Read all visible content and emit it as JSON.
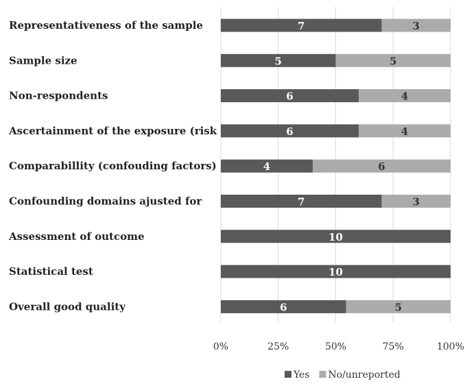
{
  "chart_data": {
    "type": "bar",
    "orientation": "horizontal",
    "stacked": "percent",
    "categories": [
      "Representativeness of the sample",
      "Sample size",
      "Non-respondents",
      "Ascertainment of the exposure (risk factor)",
      "Comparabillity (confouding factors)",
      "Confounding domains ajusted for",
      "Assessment of outcome",
      "Statistical test",
      "Overall good quality"
    ],
    "series": [
      {
        "name": "Yes",
        "values": [
          7,
          5,
          6,
          6,
          4,
          7,
          10,
          10,
          6
        ],
        "color": "#595959"
      },
      {
        "name": "No/unreported",
        "values": [
          3,
          5,
          4,
          4,
          6,
          3,
          0,
          0,
          5
        ],
        "color": "#ababab"
      }
    ],
    "xticks": [
      "0%",
      "25%",
      "50%",
      "75%",
      "100%"
    ],
    "xlim": [
      0,
      100
    ],
    "grid": true,
    "legend": "bottom"
  }
}
